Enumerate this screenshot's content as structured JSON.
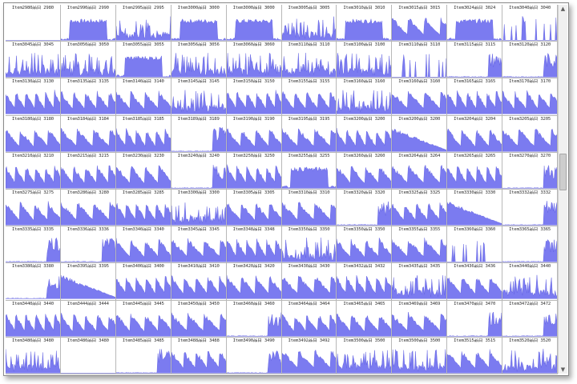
{
  "window": {
    "grid": {
      "rows": 10,
      "columns": 10,
      "bar_color": "#7b7bf0",
      "bar_edge_color": "#5a5ae0",
      "cells": [
        {
          "title": "Item2980品目 2980",
          "pattern": "empty"
        },
        {
          "title": "Item2990品目 2990",
          "pattern": "block"
        },
        {
          "title": "Item2995品目 2995",
          "pattern": "spiky"
        },
        {
          "title": "Item3000品目 3000",
          "pattern": "block"
        },
        {
          "title": "Item3000品目 3000",
          "pattern": "block"
        },
        {
          "title": "Item3005品目 3005",
          "pattern": "spiky"
        },
        {
          "title": "Item3010品目 3010",
          "pattern": "block"
        },
        {
          "title": "Item3015品目 3015",
          "pattern": "sawtooth"
        },
        {
          "title": "Item3024品目 3024",
          "pattern": "block"
        },
        {
          "title": "Item3040品目 3040",
          "pattern": "sparse"
        },
        {
          "title": "Item3045品目 3045",
          "pattern": "spiky"
        },
        {
          "title": "Item3050品目 3050",
          "pattern": "spiky"
        },
        {
          "title": "Item3055品目 3055",
          "pattern": "block"
        },
        {
          "title": "Item3056品目 3056",
          "pattern": "spiky"
        },
        {
          "title": "Item3060品目 3060",
          "pattern": "spiky"
        },
        {
          "title": "Item3110品目 3110",
          "pattern": "spiky"
        },
        {
          "title": "Item3100品目 3100",
          "pattern": "spiky"
        },
        {
          "title": "Item3110品目 3110",
          "pattern": "sparse"
        },
        {
          "title": "Item3115品目 3115",
          "pattern": "tail"
        },
        {
          "title": "Item3120品目 3120",
          "pattern": "tail"
        },
        {
          "title": "Item3130品目 3130",
          "pattern": "sawtooth"
        },
        {
          "title": "Item3135品目 3135",
          "pattern": "sawtooth"
        },
        {
          "title": "Item3140品目 3140",
          "pattern": "sawtooth"
        },
        {
          "title": "Item3145品目 3145",
          "pattern": "spiky"
        },
        {
          "title": "Item3150品目 3150",
          "pattern": "sawtooth"
        },
        {
          "title": "Item3155品目 3155",
          "pattern": "sawtooth"
        },
        {
          "title": "Item3160品目 3160",
          "pattern": "spiky"
        },
        {
          "title": "Item3160品目 3160",
          "pattern": "sawtooth"
        },
        {
          "title": "Item3165品目 3165",
          "pattern": "sawtooth"
        },
        {
          "title": "Item3170品目 3170",
          "pattern": "sawtooth"
        },
        {
          "title": "Item3180品目 3180",
          "pattern": "sawtooth"
        },
        {
          "title": "Item3184品目 3184",
          "pattern": "sawtooth"
        },
        {
          "title": "Item3185品目 3185",
          "pattern": "sawtooth"
        },
        {
          "title": "Item3189品目 3189",
          "pattern": "tail"
        },
        {
          "title": "Item3190品目 3190",
          "pattern": "sawtooth"
        },
        {
          "title": "Item3195品目 3195",
          "pattern": "sawtooth"
        },
        {
          "title": "Item3200品目 3200",
          "pattern": "sawtooth"
        },
        {
          "title": "Item3200品目 3200",
          "pattern": "decline"
        },
        {
          "title": "Item3204品目 3204",
          "pattern": "sawtooth"
        },
        {
          "title": "Item3205品目 3205",
          "pattern": "sawtooth"
        },
        {
          "title": "Item3210品目 3210",
          "pattern": "sawtooth"
        },
        {
          "title": "Item3215品目 3215",
          "pattern": "sawtooth"
        },
        {
          "title": "Item3230品目 3230",
          "pattern": "sawtooth"
        },
        {
          "title": "Item3240品目 3240",
          "pattern": "tail"
        },
        {
          "title": "Item3250品目 3250",
          "pattern": "sawtooth"
        },
        {
          "title": "Item3255品目 3255",
          "pattern": "block"
        },
        {
          "title": "Item3260品目 3260",
          "pattern": "sawtooth"
        },
        {
          "title": "Item3264品目 3264",
          "pattern": "sawtooth"
        },
        {
          "title": "Item3265品目 3265",
          "pattern": "sawtooth"
        },
        {
          "title": "Item3270品目 3270",
          "pattern": "tail"
        },
        {
          "title": "Item3275品目 3275",
          "pattern": "sawtooth"
        },
        {
          "title": "Item3280品目 3280",
          "pattern": "sawtooth"
        },
        {
          "title": "Item3285品目 3285",
          "pattern": "sawtooth"
        },
        {
          "title": "Item3300品目 3300",
          "pattern": "spiky"
        },
        {
          "title": "Item3305品目 3305",
          "pattern": "sawtooth"
        },
        {
          "title": "Item3310品目 3310",
          "pattern": "sawtooth"
        },
        {
          "title": "Item3320品目 3320",
          "pattern": "tail"
        },
        {
          "title": "Item3325品目 3325",
          "pattern": "sawtooth"
        },
        {
          "title": "Item3330品目 3330",
          "pattern": "decline"
        },
        {
          "title": "Item3332品目 3332",
          "pattern": "tail"
        },
        {
          "title": "Item3335品目 3335",
          "pattern": "tail"
        },
        {
          "title": "Item3336品目 3336",
          "pattern": "tail"
        },
        {
          "title": "Item3340品目 3340",
          "pattern": "sawtooth"
        },
        {
          "title": "Item3345品目 3345",
          "pattern": "sawtooth"
        },
        {
          "title": "Item3348品目 3348",
          "pattern": "sawtooth"
        },
        {
          "title": "Item3350品目 3350",
          "pattern": "spiky"
        },
        {
          "title": "Item3350品目 3350",
          "pattern": "sawtooth"
        },
        {
          "title": "Item3355品目 3355",
          "pattern": "sawtooth"
        },
        {
          "title": "Item3360品目 3360",
          "pattern": "sparse"
        },
        {
          "title": "Item3365品目 3365",
          "pattern": "tail"
        },
        {
          "title": "Item3380品目 3380",
          "pattern": "tail"
        },
        {
          "title": "Item3395品目 3395",
          "pattern": "decline"
        },
        {
          "title": "Item3400品目 3400",
          "pattern": "sawtooth"
        },
        {
          "title": "Item3410品目 3410",
          "pattern": "sawtooth"
        },
        {
          "title": "Item3420品目 3420",
          "pattern": "sawtooth"
        },
        {
          "title": "Item3430品目 3430",
          "pattern": "sawtooth"
        },
        {
          "title": "Item3432品目 3432",
          "pattern": "sawtooth"
        },
        {
          "title": "Item3435品目 3435",
          "pattern": "spiky"
        },
        {
          "title": "Item3436品目 3436",
          "pattern": "sawtooth"
        },
        {
          "title": "Item3440品目 3440",
          "pattern": "spiky"
        },
        {
          "title": "Item3440品目 3440",
          "pattern": "sawtooth"
        },
        {
          "title": "Item3444品目 3444",
          "pattern": "sawtooth"
        },
        {
          "title": "Item3445品目 3445",
          "pattern": "sawtooth"
        },
        {
          "title": "Item3450品目 3450",
          "pattern": "sawtooth"
        },
        {
          "title": "Item3460品目 3460",
          "pattern": "tail"
        },
        {
          "title": "Item3464品目 3464",
          "pattern": "sawtooth"
        },
        {
          "title": "Item3465品目 3465",
          "pattern": "sawtooth"
        },
        {
          "title": "Item3469品目 3469",
          "pattern": "sawtooth"
        },
        {
          "title": "Item3470品目 3470",
          "pattern": "tail"
        },
        {
          "title": "Item3472品目 3472",
          "pattern": "tail"
        },
        {
          "title": "Item3480品目 3480",
          "pattern": "spiky"
        },
        {
          "title": "Item3480品目 3480",
          "pattern": "empty"
        },
        {
          "title": "Item3485品目 3485",
          "pattern": "tail"
        },
        {
          "title": "Item3488品目 3488",
          "pattern": "sawtooth"
        },
        {
          "title": "Item3490品目 3490",
          "pattern": "tail"
        },
        {
          "title": "Item3492品目 3492",
          "pattern": "sawtooth"
        },
        {
          "title": "Item3500品目 3500",
          "pattern": "spiky"
        },
        {
          "title": "Item3500品目 3500",
          "pattern": "spiky"
        },
        {
          "title": "Item3515品目 3515",
          "pattern": "sawtooth"
        },
        {
          "title": "Item3520品目 3520",
          "pattern": "spiky"
        }
      ]
    },
    "scrollbar": {
      "up_glyph": "▲",
      "down_glyph": "▼"
    }
  }
}
